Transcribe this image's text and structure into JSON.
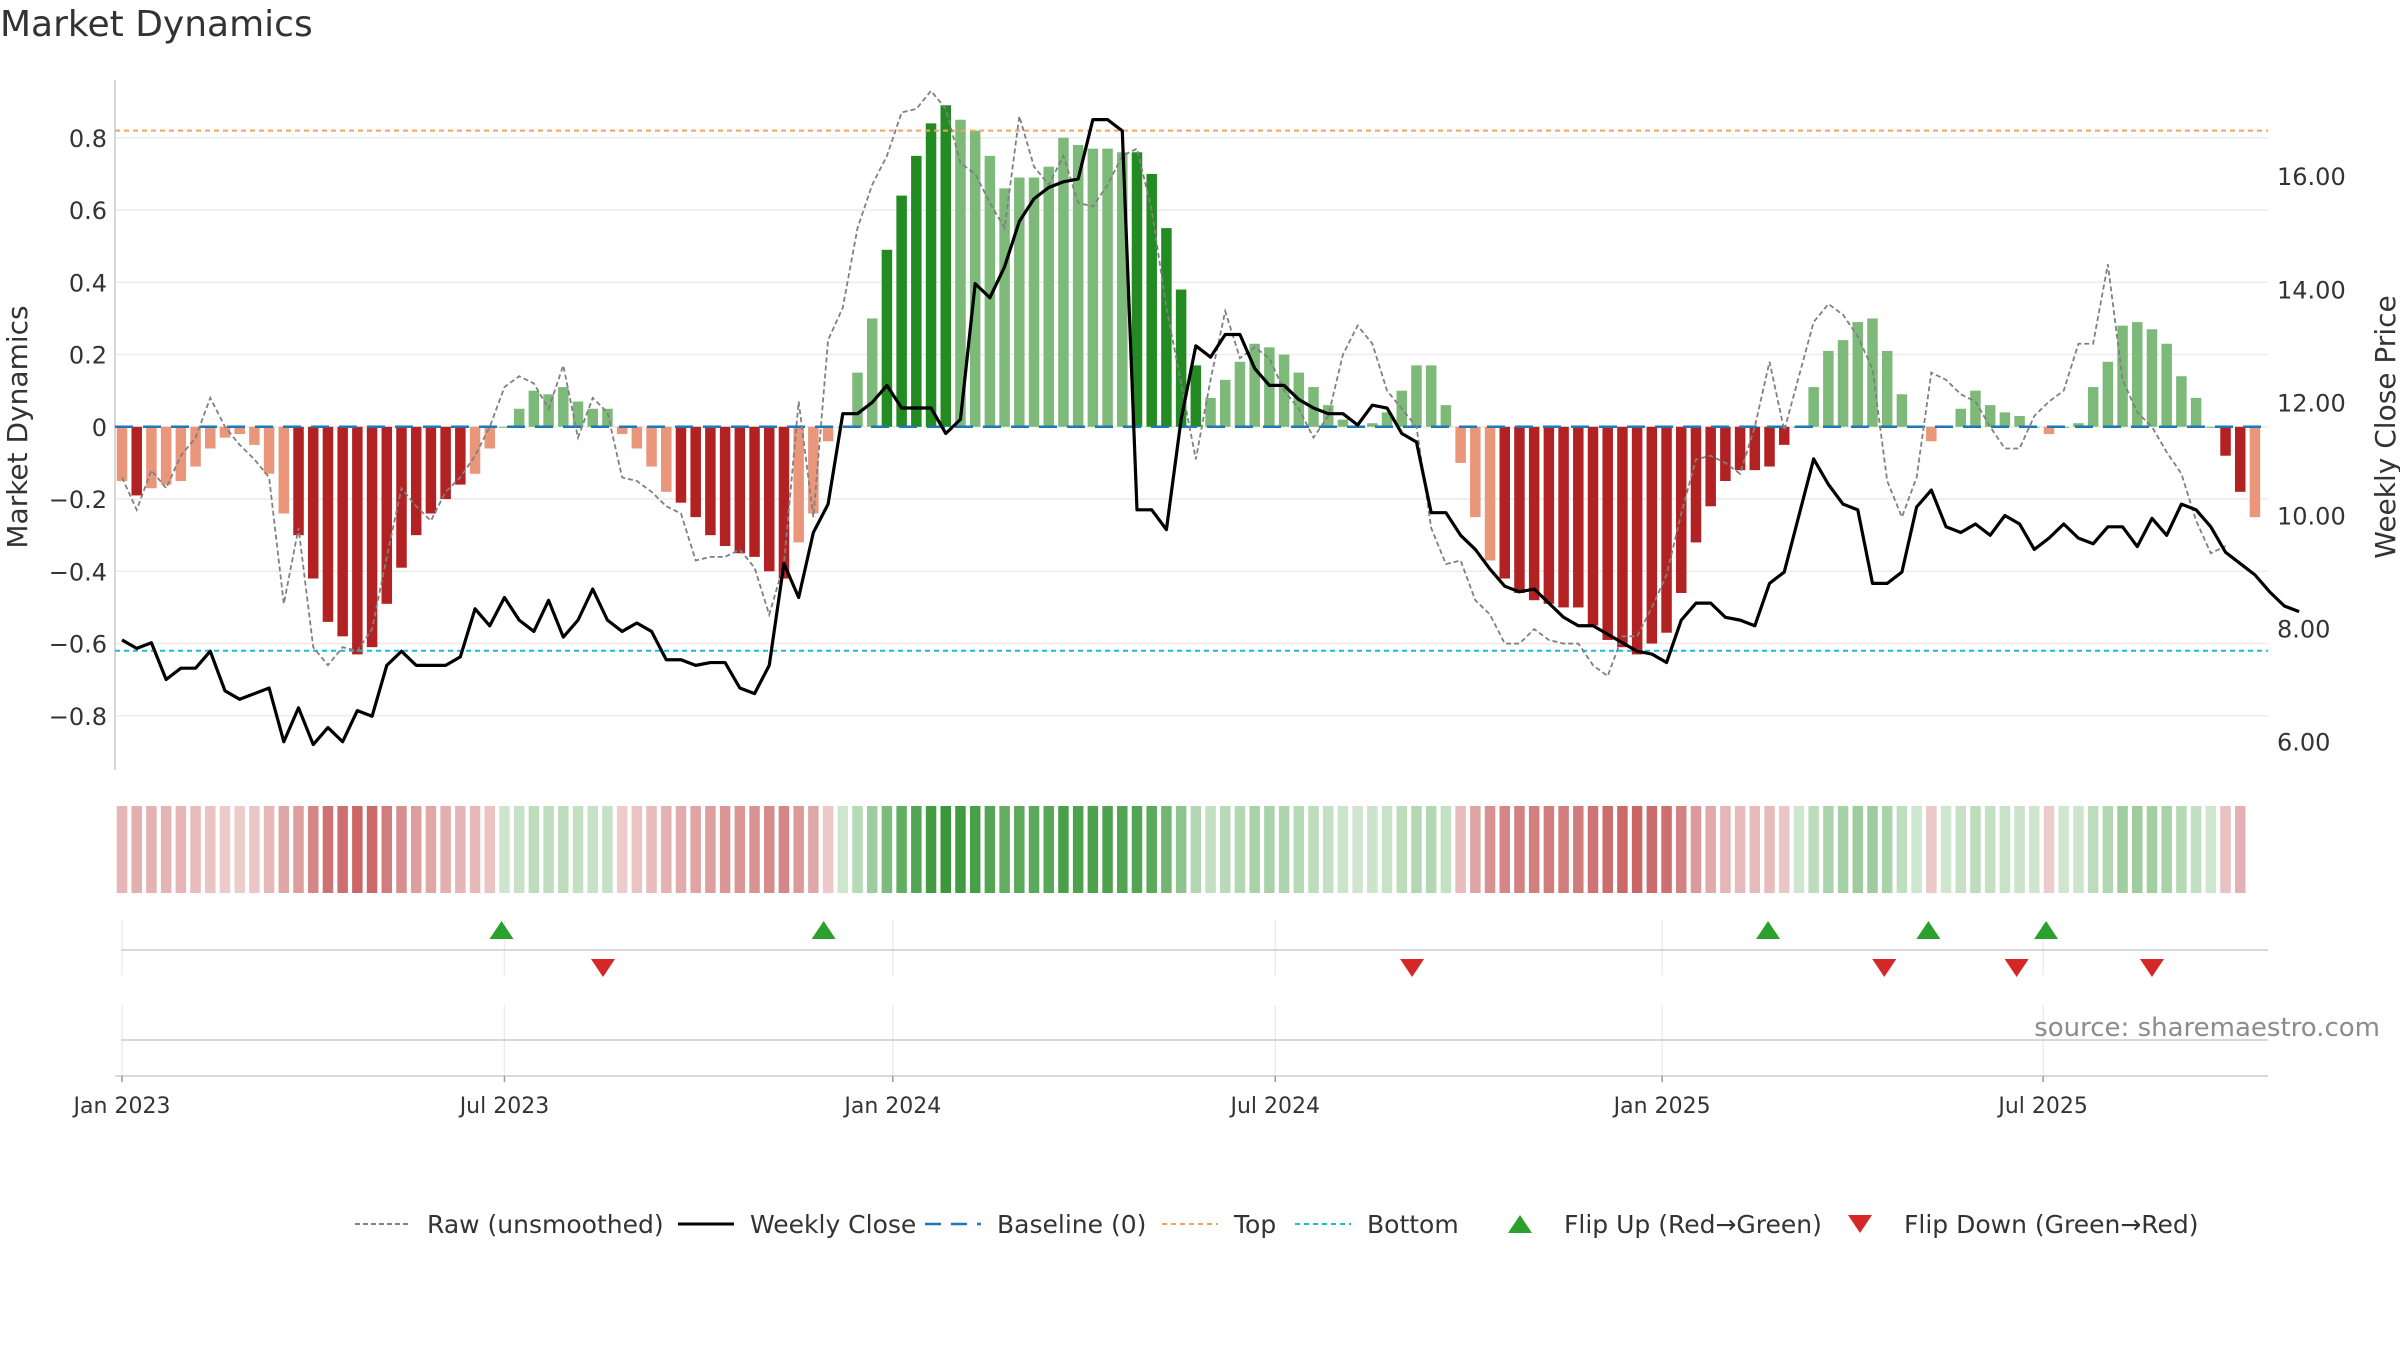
{
  "title": "Market Dynamics",
  "source": "source: sharemaestro.com",
  "chart_data": {
    "type": "bar",
    "title": "Market Dynamics",
    "ylabel": "Market Dynamics",
    "y2label": "Weekly Close Price",
    "ylim": [
      -0.95,
      0.96
    ],
    "y2lim": [
      5.5,
      17.7
    ],
    "yticks": [
      -0.8,
      -0.6,
      -0.4,
      -0.2,
      0,
      0.2,
      0.4,
      0.6,
      0.8
    ],
    "ytick_labels": [
      "−0.8",
      "−0.6",
      "−0.4",
      "−0.2",
      "0",
      "0.2",
      "0.4",
      "0.6",
      "0.8"
    ],
    "y2ticks": [
      6,
      8,
      10,
      12,
      14,
      16
    ],
    "y2tick_labels": [
      "6.00",
      "8.00",
      "10.00",
      "12.00",
      "14.00",
      "16.00"
    ],
    "x_start": "2022-12-26",
    "x_ticks": [
      {
        "week": 0,
        "label": "Jan 2023"
      },
      {
        "week": 26,
        "label": "Jul 2023"
      },
      {
        "week": 52.4,
        "label": "Jan 2024"
      },
      {
        "week": 78.4,
        "label": "Jul 2024"
      },
      {
        "week": 104.7,
        "label": "Jan 2025"
      },
      {
        "week": 130.6,
        "label": "Jul 2025"
      }
    ],
    "top_level": 0.82,
    "bottom_level": -0.62,
    "grid": true,
    "legend_position": "bottom-center",
    "momentum": [
      -0.15,
      -0.19,
      -0.17,
      -0.16,
      -0.15,
      -0.11,
      -0.06,
      -0.03,
      -0.02,
      -0.05,
      -0.13,
      -0.24,
      -0.3,
      -0.42,
      -0.54,
      -0.58,
      -0.63,
      -0.61,
      -0.49,
      -0.39,
      -0.3,
      -0.24,
      -0.2,
      -0.16,
      -0.13,
      -0.06,
      0.0,
      0.05,
      0.1,
      0.09,
      0.11,
      0.07,
      0.05,
      0.05,
      -0.02,
      -0.06,
      -0.11,
      -0.18,
      -0.21,
      -0.25,
      -0.3,
      -0.33,
      -0.35,
      -0.36,
      -0.4,
      -0.42,
      -0.32,
      -0.24,
      -0.04,
      0.0,
      0.15,
      0.3,
      0.49,
      0.64,
      0.75,
      0.84,
      0.89,
      0.85,
      0.82,
      0.75,
      0.66,
      0.69,
      0.69,
      0.72,
      0.8,
      0.78,
      0.77,
      0.77,
      0.76,
      0.76,
      0.7,
      0.55,
      0.38,
      0.17,
      0.08,
      0.13,
      0.18,
      0.23,
      0.22,
      0.2,
      0.15,
      0.11,
      0.06,
      0.02,
      0.0,
      0.01,
      0.04,
      0.1,
      0.17,
      0.17,
      0.06,
      -0.1,
      -0.25,
      -0.37,
      -0.42,
      -0.46,
      -0.48,
      -0.49,
      -0.5,
      -0.5,
      -0.55,
      -0.59,
      -0.61,
      -0.63,
      -0.6,
      -0.57,
      -0.46,
      -0.32,
      -0.22,
      -0.15,
      -0.12,
      -0.12,
      -0.11,
      -0.05,
      0.0,
      0.11,
      0.21,
      0.24,
      0.29,
      0.3,
      0.21,
      0.09,
      0.0,
      -0.04,
      0.0,
      0.05,
      0.1,
      0.06,
      0.04,
      0.03,
      0.0,
      -0.02,
      0.0,
      0.01,
      0.11,
      0.18,
      0.28,
      0.29,
      0.27,
      0.23,
      0.14,
      0.08,
      0.0,
      -0.08,
      -0.18,
      -0.25
    ],
    "raw": [
      -0.14,
      -0.23,
      -0.12,
      -0.17,
      -0.08,
      -0.03,
      0.08,
      0.0,
      -0.05,
      -0.09,
      -0.14,
      -0.49,
      -0.28,
      -0.61,
      -0.66,
      -0.61,
      -0.62,
      -0.56,
      -0.36,
      -0.17,
      -0.22,
      -0.26,
      -0.18,
      -0.14,
      -0.08,
      0.0,
      0.11,
      0.14,
      0.12,
      0.05,
      0.17,
      -0.03,
      0.08,
      0.04,
      -0.14,
      -0.15,
      -0.18,
      -0.22,
      -0.24,
      -0.37,
      -0.36,
      -0.36,
      -0.34,
      -0.39,
      -0.52,
      -0.38,
      0.07,
      -0.25,
      0.24,
      0.33,
      0.55,
      0.67,
      0.75,
      0.87,
      0.88,
      0.93,
      0.88,
      0.73,
      0.7,
      0.62,
      0.55,
      0.86,
      0.72,
      0.67,
      0.75,
      0.62,
      0.61,
      0.67,
      0.75,
      0.77,
      0.6,
      0.33,
      0.12,
      -0.09,
      0.13,
      0.32,
      0.19,
      0.22,
      0.19,
      0.1,
      0.05,
      -0.03,
      0.03,
      0.2,
      0.28,
      0.23,
      0.1,
      0.05,
      0.0,
      -0.28,
      -0.38,
      -0.37,
      -0.48,
      -0.52,
      -0.6,
      -0.6,
      -0.56,
      -0.59,
      -0.6,
      -0.6,
      -0.66,
      -0.69,
      -0.58,
      -0.58,
      -0.5,
      -0.41,
      -0.24,
      -0.09,
      -0.08,
      -0.1,
      -0.13,
      0.0,
      0.18,
      -0.01,
      0.14,
      0.29,
      0.34,
      0.31,
      0.25,
      0.16,
      -0.15,
      -0.25,
      -0.14,
      0.15,
      0.13,
      0.09,
      0.07,
      0.0,
      -0.06,
      -0.06,
      0.03,
      0.07,
      0.1,
      0.23,
      0.23,
      0.45,
      0.13,
      0.04,
      0.0,
      -0.07,
      -0.13,
      -0.26,
      -0.35,
      -0.33
    ],
    "close": [
      7.8,
      7.65,
      7.75,
      7.1,
      7.3,
      7.3,
      7.6,
      6.9,
      6.75,
      6.85,
      6.95,
      6.0,
      6.6,
      5.95,
      6.25,
      6.0,
      6.55,
      6.45,
      7.35,
      7.6,
      7.35,
      7.35,
      7.35,
      7.5,
      8.35,
      8.05,
      8.55,
      8.15,
      7.95,
      8.5,
      7.85,
      8.15,
      8.7,
      8.15,
      7.95,
      8.1,
      7.95,
      7.45,
      7.45,
      7.35,
      7.4,
      7.4,
      6.95,
      6.85,
      7.35,
      9.15,
      8.55,
      9.7,
      10.2,
      11.8,
      11.8,
      12.0,
      12.3,
      11.9,
      11.9,
      11.9,
      11.45,
      11.7,
      14.1,
      13.85,
      14.4,
      15.2,
      15.6,
      15.8,
      15.9,
      15.95,
      17.0,
      17.0,
      16.8,
      10.1,
      10.1,
      9.75,
      11.7,
      13.0,
      12.8,
      13.2,
      13.2,
      12.6,
      12.3,
      12.3,
      12.05,
      11.9,
      11.8,
      11.8,
      11.6,
      11.95,
      11.9,
      11.45,
      11.3,
      10.05,
      10.05,
      9.65,
      9.4,
      9.05,
      8.75,
      8.65,
      8.7,
      8.45,
      8.2,
      8.05,
      8.05,
      7.9,
      7.75,
      7.6,
      7.55,
      7.4,
      8.15,
      8.45,
      8.45,
      8.2,
      8.15,
      8.05,
      8.8,
      9.0,
      10.0,
      11.0,
      10.55,
      10.2,
      10.1,
      8.8,
      8.8,
      9.0,
      10.15,
      10.45,
      9.8,
      9.7,
      9.85,
      9.65,
      10.0,
      9.85,
      9.4,
      9.6,
      9.85,
      9.6,
      9.5,
      9.8,
      9.8,
      9.45,
      9.95,
      9.65,
      10.2,
      10.1,
      9.8,
      9.35,
      9.15,
      8.95,
      8.65,
      8.4,
      8.3
    ],
    "state": [
      1,
      2,
      1,
      1,
      1,
      1,
      1,
      1,
      1,
      1,
      1,
      1,
      2,
      2,
      3,
      3,
      3,
      3,
      3,
      2,
      2,
      2,
      2,
      2,
      1,
      1,
      0,
      1,
      1,
      1,
      1,
      1,
      1,
      1,
      0,
      1,
      1,
      1,
      2,
      2,
      2,
      2,
      2,
      2,
      2,
      2,
      1,
      1,
      1,
      0,
      1,
      1,
      2,
      2,
      2,
      2,
      3,
      3,
      3,
      3,
      3,
      3,
      3,
      3,
      3,
      3,
      3,
      3,
      3,
      2,
      2,
      2,
      2,
      2,
      1,
      1,
      1,
      1,
      1,
      1,
      1,
      1,
      1,
      1,
      1,
      1,
      1,
      1,
      1,
      1,
      1,
      1,
      1,
      1,
      2,
      2,
      2,
      2,
      2,
      2,
      2,
      2,
      2,
      2,
      2,
      3,
      3,
      3,
      3,
      3,
      3,
      3,
      2,
      2,
      2,
      1,
      1,
      1,
      1,
      1,
      1,
      1,
      1,
      1,
      1,
      1,
      1,
      1,
      1,
      1,
      1,
      1,
      1,
      1,
      1,
      1,
      1,
      1,
      1,
      1,
      1,
      1,
      1,
      2,
      2
    ],
    "flip_up_weeks": [
      25.8,
      47.7,
      111.9,
      122.8,
      130.8
    ],
    "flip_down_weeks": [
      32.7,
      87.7,
      119.8,
      128.8,
      138.0
    ],
    "legend": [
      "Raw (unsmoothed)",
      "Weekly Close",
      "Baseline (0)",
      "Top",
      "Bottom",
      "Flip Up (Red→Green)",
      "Flip Down (Green→Red)"
    ]
  },
  "colors": {
    "dark_green": "#228b22",
    "light_green": "#7dba7a",
    "dark_red": "#b22222",
    "light_red": "#e9967a",
    "close_line": "#000000",
    "raw_line": "#808080",
    "baseline": "#1f77b4",
    "top": "#f4a460",
    "bottom": "#17becf",
    "flip_up": "#2ca02c",
    "flip_down": "#d62728"
  }
}
